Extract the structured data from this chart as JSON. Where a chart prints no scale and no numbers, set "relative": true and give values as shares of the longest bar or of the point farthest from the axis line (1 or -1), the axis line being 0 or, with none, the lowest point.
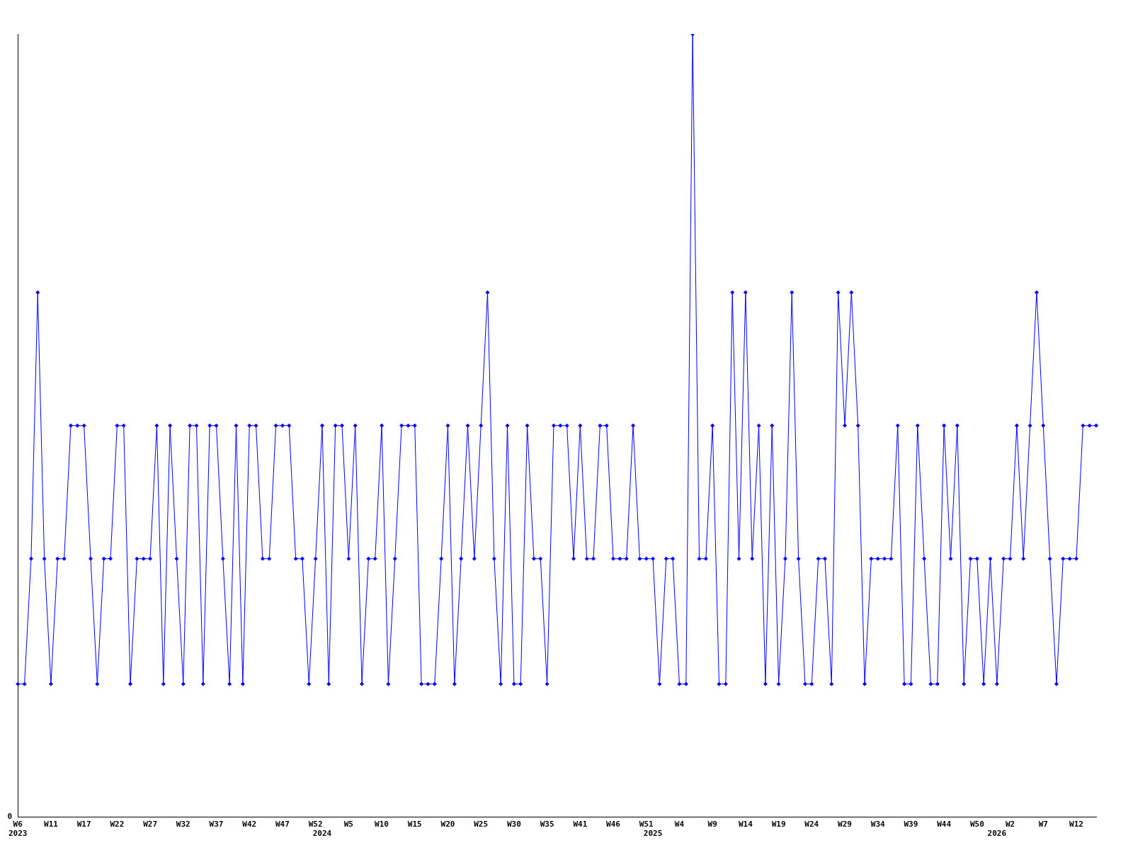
{
  "chart_data": {
    "type": "line",
    "relative": true,
    "grid": false,
    "legend": false,
    "marker": "diamond",
    "line_style": "solid",
    "annotations": [
      "0"
    ],
    "categories": [
      "W6\n2023",
      null,
      null,
      null,
      null,
      "W11",
      null,
      null,
      null,
      null,
      "W17",
      null,
      null,
      null,
      null,
      "W22",
      null,
      null,
      null,
      null,
      "W27",
      null,
      null,
      null,
      null,
      "W32",
      null,
      null,
      null,
      null,
      "W37",
      null,
      null,
      null,
      null,
      "W42",
      null,
      null,
      null,
      null,
      "W47",
      null,
      null,
      null,
      null,
      "W52",
      "\n2024",
      null,
      null,
      null,
      "W5",
      null,
      null,
      null,
      null,
      "W10",
      null,
      null,
      null,
      null,
      "W15",
      null,
      null,
      null,
      null,
      "W20",
      null,
      null,
      null,
      null,
      "W25",
      null,
      null,
      null,
      null,
      "W30",
      null,
      null,
      null,
      null,
      "W35",
      null,
      null,
      null,
      null,
      "W41",
      null,
      null,
      null,
      null,
      "W46",
      null,
      null,
      null,
      null,
      "W51",
      "\n2025",
      null,
      null,
      null,
      "W4",
      null,
      null,
      null,
      null,
      "W9",
      null,
      null,
      null,
      null,
      "W14",
      null,
      null,
      null,
      null,
      "W19",
      null,
      null,
      null,
      null,
      "W24",
      null,
      null,
      null,
      null,
      "W29",
      null,
      null,
      null,
      null,
      "W34",
      null,
      null,
      null,
      null,
      "W39",
      null,
      null,
      null,
      null,
      "W44",
      null,
      null,
      null,
      null,
      "W50",
      null,
      null,
      "\n2026",
      null,
      "W2",
      null,
      null,
      null,
      null,
      "W7",
      null,
      null,
      null,
      null,
      "W12",
      null,
      null,
      null
    ],
    "series": [
      {
        "color": "#0000ff",
        "values": [
          0.17,
          0.17,
          0.33,
          0.67,
          0.33,
          0.17,
          0.33,
          0.33,
          0.5,
          0.5,
          0.5,
          0.33,
          0.17,
          0.33,
          0.33,
          0.5,
          0.5,
          0.17,
          0.33,
          0.33,
          0.33,
          0.5,
          0.17,
          0.5,
          0.33,
          0.17,
          0.5,
          0.5,
          0.17,
          0.5,
          0.5,
          0.33,
          0.17,
          0.5,
          0.17,
          0.5,
          0.5,
          0.33,
          0.33,
          0.5,
          0.5,
          0.5,
          0.33,
          0.33,
          0.17,
          0.33,
          0.5,
          0.17,
          0.5,
          0.5,
          0.33,
          0.5,
          0.17,
          0.33,
          0.33,
          0.5,
          0.17,
          0.33,
          0.5,
          0.5,
          0.5,
          0.17,
          0.17,
          0.17,
          0.33,
          0.5,
          0.17,
          0.33,
          0.5,
          0.33,
          0.5,
          0.67,
          0.33,
          0.17,
          0.5,
          0.17,
          0.17,
          0.5,
          0.33,
          0.33,
          0.17,
          0.5,
          0.5,
          0.5,
          0.33,
          0.5,
          0.33,
          0.33,
          0.5,
          0.5,
          0.33,
          0.33,
          0.33,
          0.5,
          0.33,
          0.33,
          0.33,
          0.17,
          0.33,
          0.33,
          0.17,
          0.17,
          1,
          0.33,
          0.33,
          0.5,
          0.17,
          0.17,
          0.67,
          0.33,
          0.67,
          0.33,
          0.5,
          0.17,
          0.5,
          0.17,
          0.33,
          0.67,
          0.33,
          0.17,
          0.17,
          0.33,
          0.33,
          0.17,
          0.67,
          0.5,
          0.67,
          0.5,
          0.17,
          0.33,
          0.33,
          0.33,
          0.33,
          0.5,
          0.17,
          0.17,
          0.5,
          0.33,
          0.17,
          0.17,
          0.5,
          0.33,
          0.5,
          0.17,
          0.33,
          0.33,
          0.17,
          0.33,
          0.17,
          0.33,
          0.33,
          0.5,
          0.33,
          0.5,
          0.67,
          0.5,
          0.33,
          0.17,
          0.33,
          0.33,
          0.33,
          0.5,
          0.5,
          0.5
        ]
      }
    ]
  }
}
